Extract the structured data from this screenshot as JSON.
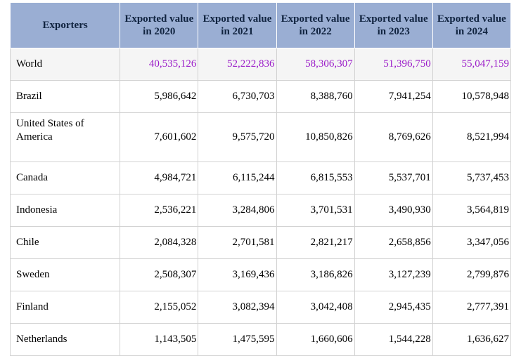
{
  "table": {
    "headers": [
      "Exporters",
      "Exported value in 2020",
      "Exported value in 2021",
      "Exported value in 2022",
      "Exported value in 2023",
      "Exported value in 2024"
    ],
    "rows": [
      {
        "name": "World",
        "values": [
          "40,535,126",
          "52,222,836",
          "58,306,307",
          "51,396,750",
          "55,047,159"
        ]
      },
      {
        "name": "Brazil",
        "values": [
          "5,986,642",
          "6,730,703",
          "8,388,760",
          "7,941,254",
          "10,578,948"
        ]
      },
      {
        "name": "United States of America",
        "values": [
          "7,601,602",
          "9,575,720",
          "10,850,826",
          "8,769,626",
          "8,521,994"
        ]
      },
      {
        "name": "Canada",
        "values": [
          "4,984,721",
          "6,115,244",
          "6,815,553",
          "5,537,701",
          "5,737,453"
        ]
      },
      {
        "name": "Indonesia",
        "values": [
          "2,536,221",
          "3,284,806",
          "3,701,531",
          "3,490,930",
          "3,564,819"
        ]
      },
      {
        "name": "Chile",
        "values": [
          "2,084,328",
          "2,701,581",
          "2,821,217",
          "2,658,856",
          "3,347,056"
        ]
      },
      {
        "name": "Sweden",
        "values": [
          "2,508,307",
          "3,169,436",
          "3,186,826",
          "3,127,239",
          "2,799,876"
        ]
      },
      {
        "name": "Finland",
        "values": [
          "2,155,052",
          "3,082,394",
          "3,042,408",
          "2,945,435",
          "2,777,391"
        ]
      },
      {
        "name": "Netherlands",
        "values": [
          "1,143,505",
          "1,475,595",
          "1,660,606",
          "1,544,228",
          "1,636,627"
        ]
      }
    ]
  },
  "colors": {
    "header_bg": "#9aaed3",
    "world_value": "#9a1ac8",
    "grid": "#d2d2d2"
  }
}
